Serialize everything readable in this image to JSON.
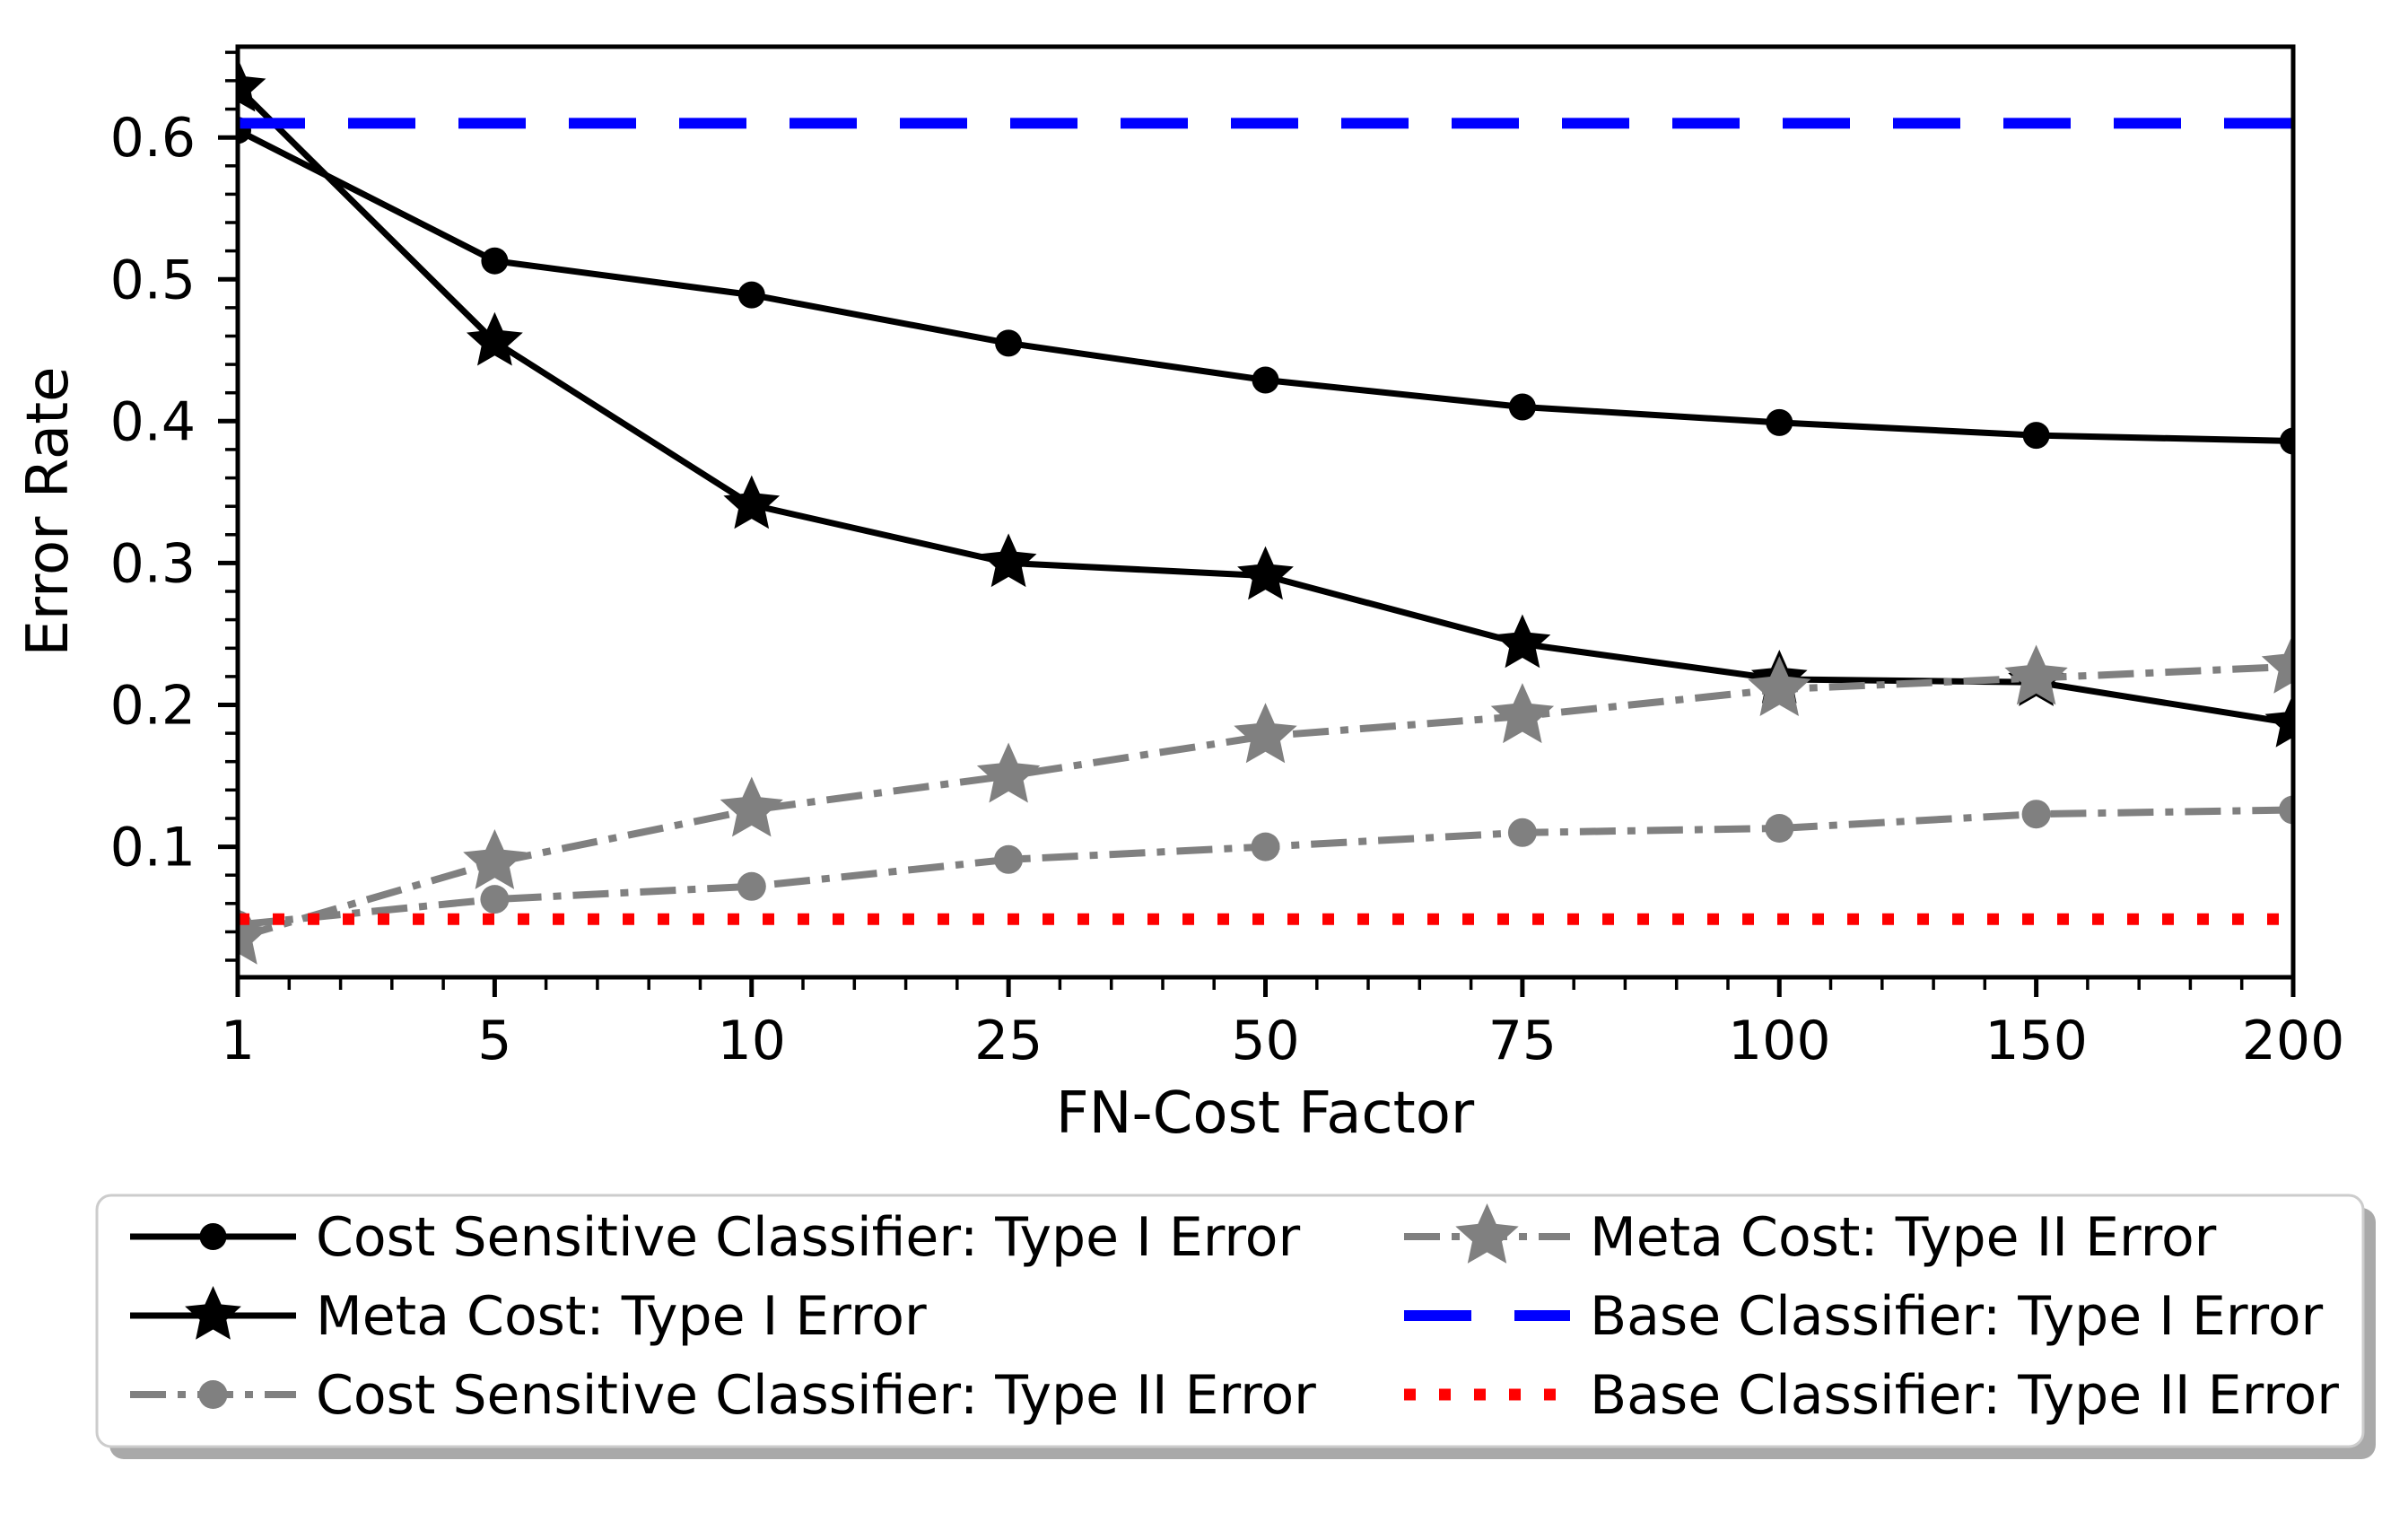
{
  "chart_data": {
    "type": "line",
    "title": "",
    "xlabel": "FN-Cost Factor",
    "ylabel": "Error Rate",
    "categories": [
      "1",
      "5",
      "10",
      "25",
      "50",
      "75",
      "100",
      "150",
      "200"
    ],
    "x_numeric": [
      1,
      5,
      10,
      25,
      50,
      75,
      100,
      150,
      200
    ],
    "x_spacing": "equal-categorical",
    "ylim": [
      0.008,
      0.664
    ],
    "y_major_ticks": [
      "0.1",
      "0.2",
      "0.3",
      "0.4",
      "0.5",
      "0.6"
    ],
    "y_major_values": [
      0.1,
      0.2,
      0.3,
      0.4,
      0.5,
      0.6
    ],
    "y_minor_step": 0.02,
    "x_minor_per_interval": 4,
    "grid": false,
    "legend_position": "below-plot-two-columns",
    "legend_columns": [
      [
        0,
        1,
        2
      ],
      [
        3,
        4,
        5
      ]
    ],
    "series": [
      {
        "label": "Cost Sensitive Classifier: Type I Error",
        "color": "#000000",
        "linestyle": "solid",
        "marker": "circle",
        "marker_size": 15,
        "line_width": 7,
        "values": [
          0.605,
          0.513,
          0.489,
          0.455,
          0.429,
          0.41,
          0.399,
          0.39,
          0.386
        ]
      },
      {
        "label": "Meta Cost: Type I Error",
        "color": "#000000",
        "linestyle": "solid",
        "marker": "star",
        "marker_size": 33,
        "line_width": 7,
        "values": [
          0.635,
          0.456,
          0.341,
          0.3,
          0.291,
          0.243,
          0.218,
          0.216,
          0.187
        ]
      },
      {
        "label": "Cost Sensitive Classifier: Type II Error",
        "color": "#808080",
        "linestyle": "dashdot",
        "marker": "circle",
        "marker_size": 16,
        "line_width": 8,
        "values": [
          0.045,
          0.063,
          0.072,
          0.091,
          0.1,
          0.11,
          0.113,
          0.123,
          0.126
        ]
      },
      {
        "label": "Meta Cost: Type II Error",
        "color": "#808080",
        "linestyle": "dashdot",
        "marker": "star",
        "marker_size": 37,
        "line_width": 8,
        "values": [
          0.036,
          0.089,
          0.126,
          0.15,
          0.178,
          0.192,
          0.211,
          0.219,
          0.227
        ]
      },
      {
        "label": "Base Classifier: Type I Error",
        "color": "#0000ff",
        "linestyle": "dashed",
        "marker": "none",
        "line_width": 12,
        "constant": 0.61
      },
      {
        "label": "Base Classifier: Type II Error",
        "color": "#ff0000",
        "linestyle": "dotted",
        "marker": "none",
        "line_width": 13,
        "constant": 0.049
      }
    ]
  },
  "colors": {
    "background": "#ffffff",
    "axis": "#000000",
    "legend_border": "#cccccc",
    "legend_shadow": "#a9a9a9",
    "legend_background": "#ffffff"
  }
}
